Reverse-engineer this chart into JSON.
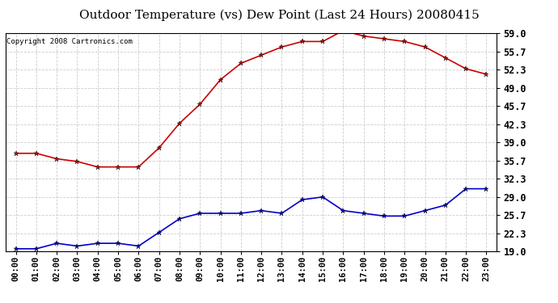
{
  "title": "Outdoor Temperature (vs) Dew Point (Last 24 Hours) 20080415",
  "copyright": "Copyright 2008 Cartronics.com",
  "x_labels": [
    "00:00",
    "01:00",
    "02:00",
    "03:00",
    "04:00",
    "05:00",
    "06:00",
    "07:00",
    "08:00",
    "09:00",
    "10:00",
    "11:00",
    "12:00",
    "13:00",
    "14:00",
    "15:00",
    "16:00",
    "17:00",
    "18:00",
    "19:00",
    "20:00",
    "21:00",
    "22:00",
    "23:00"
  ],
  "temp_data": [
    37.0,
    37.0,
    36.0,
    35.5,
    34.5,
    34.5,
    34.5,
    38.0,
    42.5,
    46.0,
    50.5,
    53.5,
    55.0,
    56.5,
    57.5,
    57.5,
    59.5,
    58.5,
    58.0,
    57.5,
    56.5,
    54.5,
    52.5,
    51.5
  ],
  "dew_data": [
    19.5,
    19.5,
    20.5,
    20.0,
    20.5,
    20.5,
    20.0,
    22.5,
    25.0,
    26.0,
    26.0,
    26.0,
    26.5,
    26.0,
    28.5,
    29.0,
    26.5,
    26.0,
    25.5,
    25.5,
    26.5,
    27.5,
    30.5,
    30.5
  ],
  "temp_color": "#cc0000",
  "dew_color": "#0000cc",
  "y_ticks": [
    19.0,
    22.3,
    25.7,
    29.0,
    32.3,
    35.7,
    39.0,
    42.3,
    45.7,
    49.0,
    52.3,
    55.7,
    59.0
  ],
  "y_tick_labels": [
    "19.0",
    "22.3",
    "25.7",
    "29.0",
    "32.3",
    "35.7",
    "39.0",
    "42.3",
    "45.7",
    "49.0",
    "52.3",
    "55.7",
    "59.0"
  ],
  "y_min": 19.0,
  "y_max": 59.0,
  "bg_color": "#ffffff",
  "grid_color": "#cccccc",
  "title_fontsize": 11,
  "copyright_fontsize": 6.5,
  "tick_fontsize": 7.5,
  "y_tick_fontsize": 8.5
}
